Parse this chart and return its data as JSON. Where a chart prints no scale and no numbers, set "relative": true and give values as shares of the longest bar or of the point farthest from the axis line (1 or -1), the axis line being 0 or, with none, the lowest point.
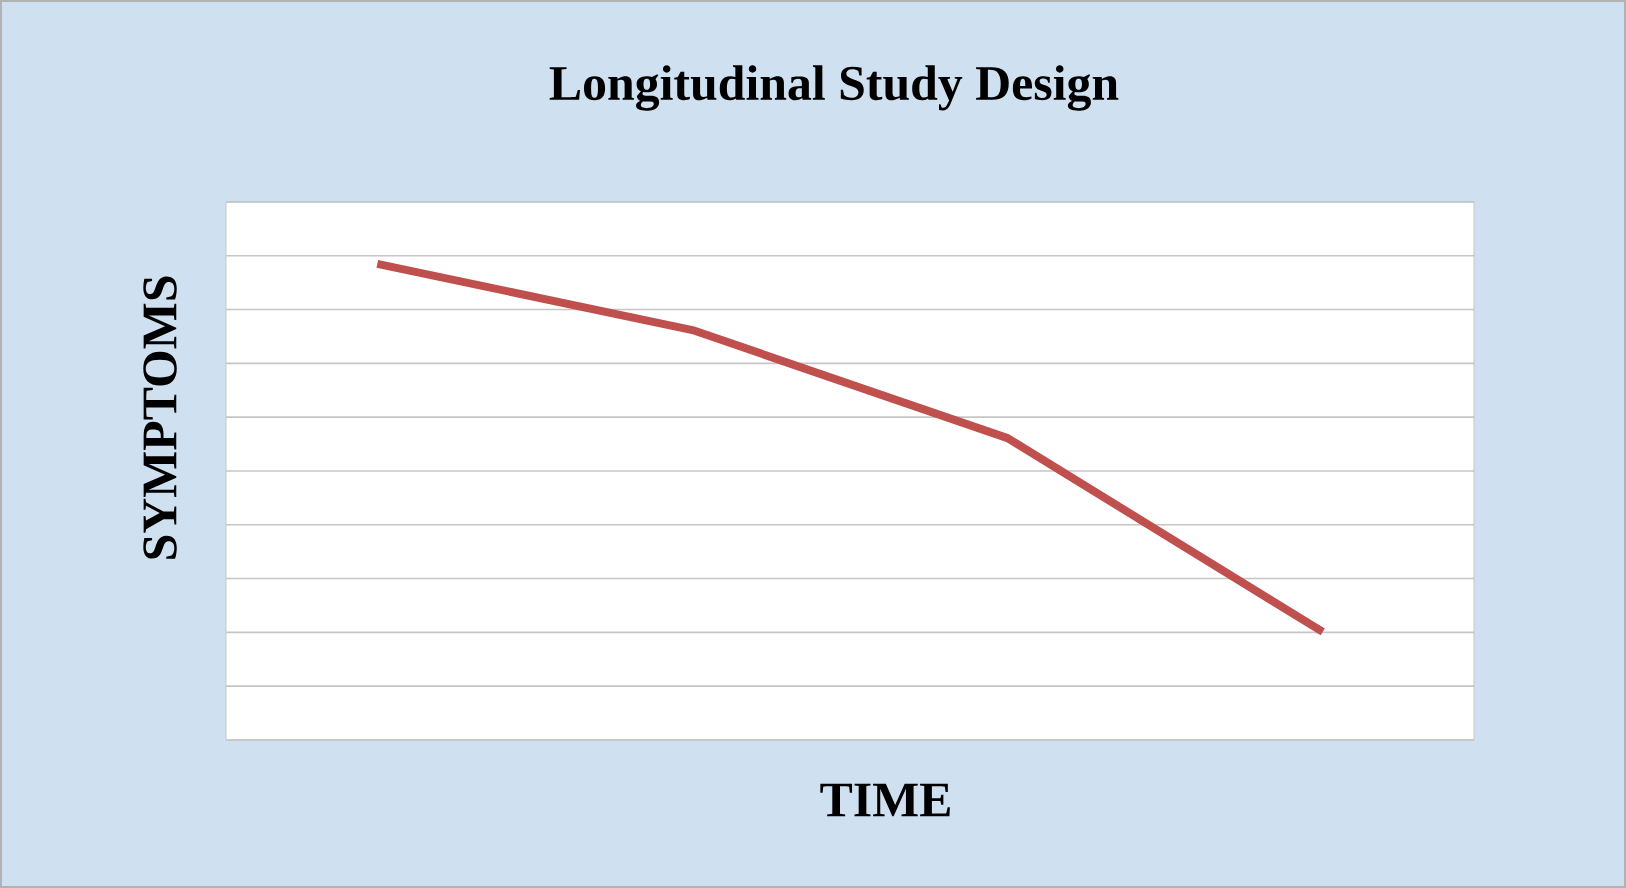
{
  "chart_data": {
    "type": "line",
    "title": "Longitudinal Study Design",
    "xlabel": "TIME",
    "ylabel": "SYMPTOMS",
    "categories": [
      null,
      null,
      null,
      null
    ],
    "relative": true,
    "series": [
      {
        "color": "#c0504d",
        "values": [
          1,
          0.861,
          0.634,
          0.227
        ]
      }
    ],
    "grid": "y",
    "marker": "none",
    "line_style": "solid"
  }
}
